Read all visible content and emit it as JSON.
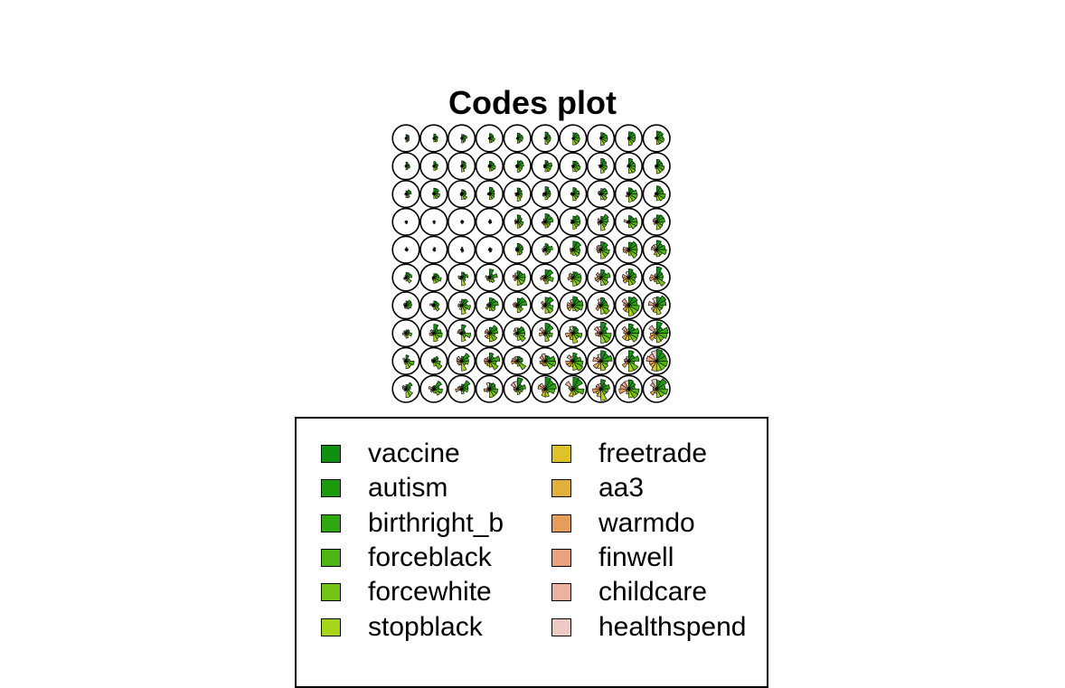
{
  "chart_data": {
    "type": "som-codes-fan",
    "title": "Codes plot",
    "grid": {
      "cols": 10,
      "rows": 10,
      "shape": "circle"
    },
    "codes": [
      {
        "name": "vaccine",
        "color": "#109010"
      },
      {
        "name": "autism",
        "color": "#1C9C0C"
      },
      {
        "name": "birthright_b",
        "color": "#2FA70F"
      },
      {
        "name": "forceblack",
        "color": "#4BB513"
      },
      {
        "name": "forcewhite",
        "color": "#72C416"
      },
      {
        "name": "stopblack",
        "color": "#A5D61A"
      },
      {
        "name": "freetrade",
        "color": "#DEC22A"
      },
      {
        "name": "aa3",
        "color": "#E2AE3C"
      },
      {
        "name": "warmdo",
        "color": "#E69D5A"
      },
      {
        "name": "finwell",
        "color": "#E9A27E"
      },
      {
        "name": "childcare",
        "color": "#EBB2A1"
      },
      {
        "name": "healthspend",
        "color": "#EDCAC4"
      }
    ],
    "legend": {
      "placement": "bottom",
      "columns": 2
    }
  }
}
